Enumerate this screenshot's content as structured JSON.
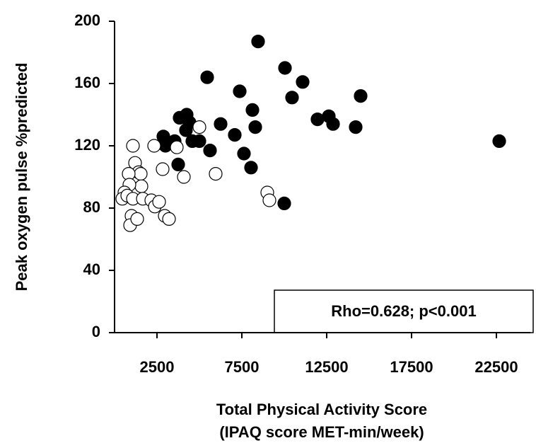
{
  "chart_data": {
    "type": "scatter",
    "y_label": "Peak oxygen pulse %predicted",
    "x_label_lines": [
      "Total Physical Activity Score",
      "(IPAQ score MET-min/week)"
    ],
    "annotation": "Rho=0.628; p<0.001",
    "xlim": [
      0,
      24500
    ],
    "xticks": [
      2500,
      7500,
      12500,
      17500,
      22500
    ],
    "ylim": [
      0,
      200
    ],
    "yticks": [
      0,
      40,
      80,
      120,
      160,
      200
    ],
    "series": [
      {
        "color": "#000000",
        "fill": "#000000",
        "x": [
          2875,
          3000,
          3542,
          3750,
          3833,
          4250,
          4208,
          4417,
          4583,
          5000,
          5458,
          5625,
          6250,
          7083,
          7375,
          7625,
          8042,
          8125,
          8292,
          8458,
          10000,
          10042,
          10458,
          11083,
          11958,
          12625,
          12875,
          14208,
          14500,
          22667
        ],
        "values": [
          126,
          120,
          123,
          108,
          138,
          140,
          130,
          135,
          123,
          123,
          164,
          117,
          134,
          127,
          155,
          115,
          106,
          143,
          132,
          187,
          83,
          170,
          151,
          161,
          137,
          139,
          134,
          132,
          152,
          123
        ]
      },
      {
        "color": "#000000",
        "fill": "#ffffff",
        "x": [
          1083,
          1208,
          1417,
          1542,
          1583,
          833,
          875,
          583,
          458,
          750,
          1083,
          1000,
          917,
          1333,
          1667,
          2167,
          2375,
          2625,
          2958,
          3208,
          2333,
          2833,
          3667,
          4083,
          5000,
          5958,
          9000,
          9125
        ],
        "values": [
          120,
          109,
          103,
          102,
          94,
          102,
          95,
          90,
          86,
          88,
          86,
          75,
          69,
          73,
          86,
          85,
          81,
          84,
          75,
          73,
          120,
          105,
          119,
          100,
          132,
          102,
          90,
          85
        ]
      }
    ]
  }
}
